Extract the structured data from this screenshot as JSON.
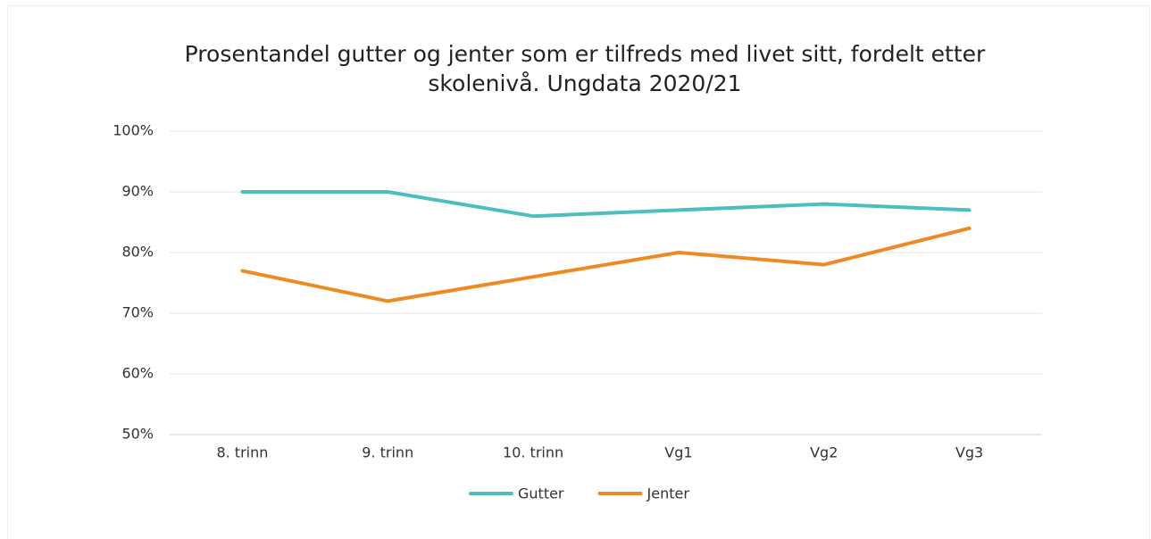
{
  "chart_data": {
    "type": "line",
    "title": "Prosentandel gutter og jenter som er tilfreds med livet sitt, fordelt etter skolenivå. Ungdata 2020/21",
    "categories": [
      "8. trinn",
      "9. trinn",
      "10. trinn",
      "Vg1",
      "Vg2",
      "Vg3"
    ],
    "series": [
      {
        "name": "Gutter",
        "color": "#4bbfbf",
        "values": [
          90,
          90,
          86,
          87,
          88,
          87
        ]
      },
      {
        "name": "Jenter",
        "color": "#ee8a22",
        "values": [
          77,
          72,
          76,
          80,
          78,
          84
        ]
      }
    ],
    "ylim": [
      50,
      100
    ],
    "yticks": [
      {
        "value": 50,
        "label": "50%"
      },
      {
        "value": 60,
        "label": "60%"
      },
      {
        "value": 70,
        "label": "70%"
      },
      {
        "value": 80,
        "label": "80%"
      },
      {
        "value": 90,
        "label": "90%"
      },
      {
        "value": 100,
        "label": "100%"
      }
    ],
    "grid": true,
    "legend": "bottom"
  }
}
